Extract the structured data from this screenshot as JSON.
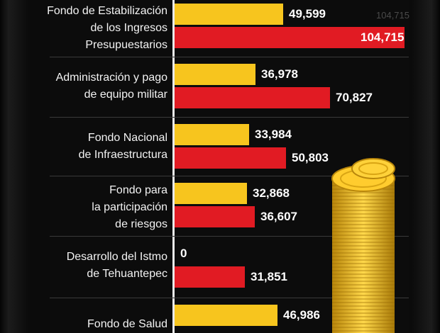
{
  "chart_data": {
    "type": "bar",
    "orientation": "horizontal",
    "categories": [
      "Fondo de Estabilización\nde los Ingresos\nPresupuestarios",
      "Administración y pago\nde equipo militar",
      "Fondo Nacional\nde Infraestructura",
      "Fondo para\nla participación\nde riesgos",
      "Desarrollo del Istmo\nde Tehuantepec",
      "Fondo de Salud"
    ],
    "series": [
      {
        "values": [
          49599,
          36978,
          33984,
          32868,
          0,
          46986
        ]
      },
      {
        "values": [
          104715,
          70827,
          50803,
          36607,
          31851,
          null
        ]
      }
    ],
    "value_labels": [
      [
        "49,599",
        "36,978",
        "33,984",
        "32,868",
        "0",
        "46,986"
      ],
      [
        "104,715",
        "70,827",
        "50,803",
        "36,607",
        "31,851",
        ""
      ]
    ],
    "ghost_label": "104,715",
    "xlim": [
      0,
      104715
    ],
    "colors": {
      "series_1": "#f7c51e",
      "series_2": "#e11b23"
    }
  }
}
